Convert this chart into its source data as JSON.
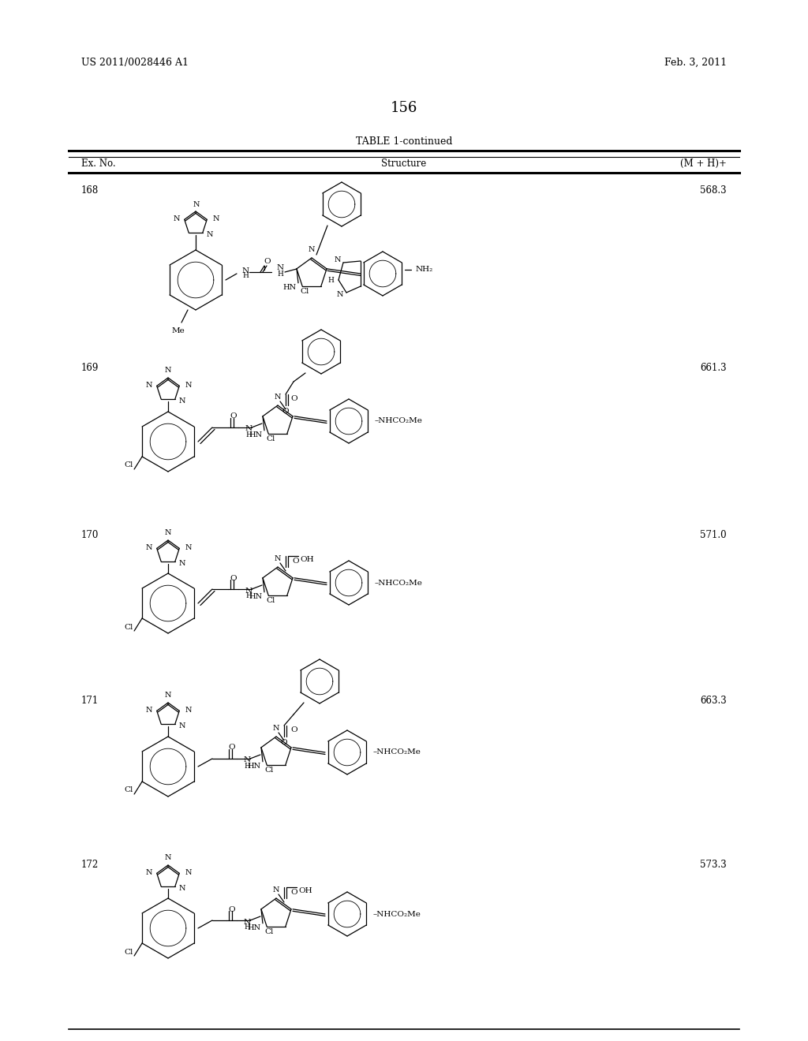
{
  "header_left": "US 2011/0028446 A1",
  "header_right": "Feb. 3, 2011",
  "page_number": "156",
  "table_title": "TABLE 1-continued",
  "col1": "Ex. No.",
  "col2": "Structure",
  "col3": "(M + H)+",
  "rows": [
    {
      "ex": "168",
      "mh": "568.3"
    },
    {
      "ex": "169",
      "mh": "661.3"
    },
    {
      "ex": "170",
      "mh": "571.0"
    },
    {
      "ex": "171",
      "mh": "663.3"
    },
    {
      "ex": "172",
      "mh": "573.3"
    }
  ],
  "row_y_starts": [
    235,
    460,
    672,
    882,
    1090
  ],
  "bg": "#ffffff",
  "fg": "#000000"
}
